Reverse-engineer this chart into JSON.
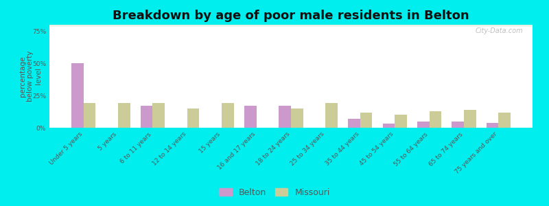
{
  "title": "Breakdown by age of poor male residents in Belton",
  "ylabel": "percentage\nbelow poverty\nlevel",
  "categories": [
    "Under 5 years",
    "5 years",
    "6 to 11 years",
    "12 to 14 years",
    "15 years",
    "16 and 17 years",
    "18 to 24 years",
    "25 to 34 years",
    "35 to 44 years",
    "45 to 54 years",
    "55 to 64 years",
    "65 to 74 years",
    "75 years and over"
  ],
  "belton_values": [
    50,
    0,
    17,
    0,
    0,
    17,
    17,
    0,
    7,
    3,
    5,
    5,
    4
  ],
  "missouri_values": [
    19,
    19,
    19,
    15,
    19,
    0,
    15,
    19,
    12,
    10,
    13,
    14,
    12
  ],
  "belton_color": "#cc99cc",
  "missouri_color": "#cccc99",
  "plot_bg_top": "#d4e8d4",
  "plot_bg_bottom": "#eef6ee",
  "outer_bg": "#00eeee",
  "ylim": [
    0,
    80
  ],
  "yticks": [
    0,
    25,
    50,
    75
  ],
  "ytick_labels": [
    "0%",
    "25%",
    "50%",
    "75%"
  ],
  "bar_width": 0.35,
  "title_fontsize": 13,
  "axis_label_fontsize": 7.5,
  "tick_fontsize": 6.5,
  "legend_fontsize": 9
}
